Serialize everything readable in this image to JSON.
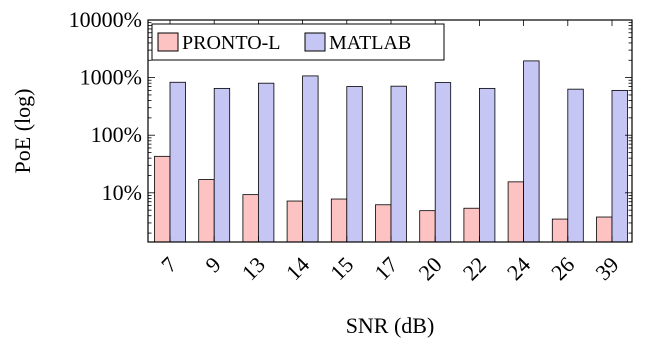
{
  "chart_data": {
    "type": "bar",
    "scale": "log",
    "title": "",
    "xlabel": "SNR (dB)",
    "ylabel": "PoE (log)",
    "categories": [
      "7",
      "9",
      "13",
      "14",
      "15",
      "17",
      "20",
      "22",
      "24",
      "26",
      "39"
    ],
    "series": [
      {
        "name": "PRONTO-L",
        "color": "#fdc2c2",
        "values": [
          43,
          17,
          9.3,
          7.2,
          7.8,
          6.2,
          4.9,
          5.4,
          15.5,
          3.5,
          3.8
        ]
      },
      {
        "name": "MATLAB",
        "color": "#c6c6f5",
        "values": [
          830,
          650,
          800,
          1070,
          700,
          710,
          820,
          650,
          1950,
          630,
          600
        ]
      }
    ],
    "ylim": [
      1.4,
      10000
    ],
    "yticks": [
      10,
      100,
      1000,
      10000
    ],
    "ytick_labels": [
      "10%",
      "100%",
      "1000%",
      "10000%"
    ],
    "grid": false,
    "legend_position": "top-left"
  }
}
